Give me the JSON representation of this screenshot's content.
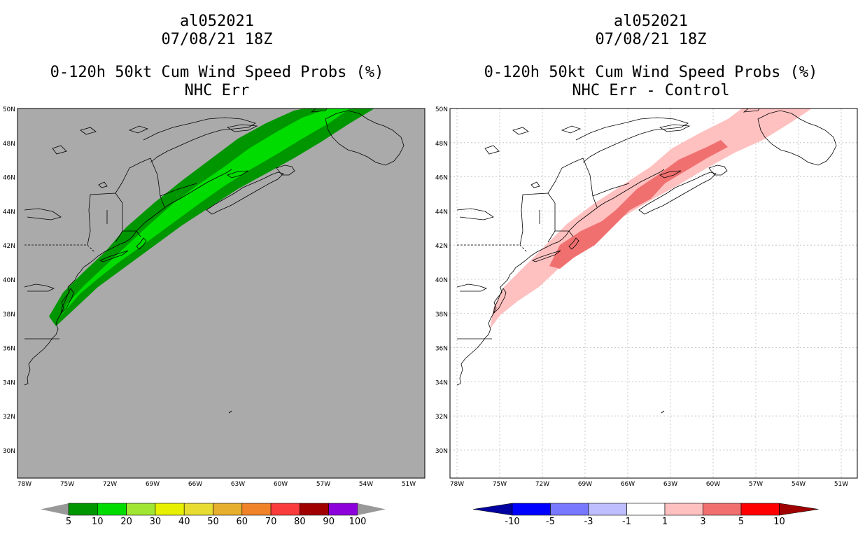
{
  "left_panel": {
    "storm_id": "al052021",
    "datetime": "07/08/21 18Z",
    "title": "0-120h 50kt Cum Wind Speed Probs (%)",
    "subtitle": "NHC Err",
    "background_color": "#aaaaaa",
    "colorbar": {
      "labels": [
        "5",
        "10",
        "20",
        "30",
        "40",
        "50",
        "60",
        "70",
        "80",
        "90",
        "100"
      ],
      "colors": [
        "#009600",
        "#00dc00",
        "#a0e632",
        "#e6f000",
        "#e6dc32",
        "#e6af2d",
        "#f08228",
        "#fa3c3c",
        "#a00000",
        "#8c00dc"
      ],
      "end_color": "#999999"
    }
  },
  "right_panel": {
    "storm_id": "al052021",
    "datetime": "07/08/21 18Z",
    "title": "0-120h 50kt Cum Wind Speed Probs (%)",
    "subtitle": "NHC Err - Control",
    "background_color": "#ffffff",
    "colorbar": {
      "labels": [
        "-10",
        "-5",
        "-3",
        "-1",
        "1",
        "3",
        "5",
        "10"
      ],
      "colors": [
        "#0000ff",
        "#7878ff",
        "#bebeff",
        "#ffffff",
        "#ffc0c0",
        "#f07070",
        "#ff0000"
      ],
      "under_color": "#0000a0",
      "over_color": "#a00000"
    }
  },
  "axes": {
    "lon_labels": [
      "78W",
      "75W",
      "72W",
      "69W",
      "66W",
      "63W",
      "60W",
      "57W",
      "54W",
      "51W"
    ],
    "lat_labels": [
      "50N",
      "48N",
      "46N",
      "44N",
      "42N",
      "40N",
      "38N",
      "36N",
      "34N",
      "32N",
      "30N"
    ]
  }
}
